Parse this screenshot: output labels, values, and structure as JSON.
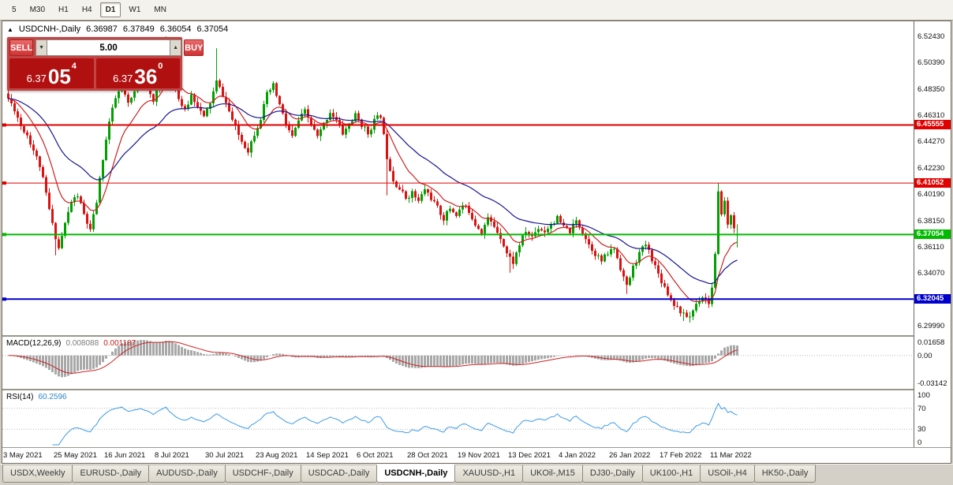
{
  "toolbar": {
    "timeframes": [
      "5",
      "M30",
      "H1",
      "H4",
      "D1",
      "W1",
      "MN"
    ],
    "active": "D1"
  },
  "header": {
    "marker": "▲",
    "symbol": "USDCNH-,Daily",
    "open": "6.36987",
    "high": "6.37849",
    "low": "6.36054",
    "close": "6.37054"
  },
  "trade_panel": {
    "sell_label": "SELL",
    "buy_label": "BUY",
    "lot_value": "5.00",
    "sell_price": {
      "main": "6.37",
      "big": "05",
      "sup": "4"
    },
    "buy_price": {
      "main": "6.37",
      "big": "36",
      "sup": "0"
    }
  },
  "macd_panel": {
    "label": "MACD(12,26,9)",
    "main_value": "0.008088",
    "signal_value": "0.001187",
    "axis": [
      "0.01658",
      "0.00",
      "-0.03142"
    ]
  },
  "rsi_panel": {
    "label": "RSI(14)",
    "value": "60.2596",
    "axis": [
      "100",
      "70",
      "30",
      "0"
    ]
  },
  "tab_bar": {
    "tabs": [
      "USDX,Weekly",
      "EURUSD-,Daily",
      "AUDUSD-,Daily",
      "USDCHF-,Daily",
      "USDCAD-,Daily",
      "USDCNH-,Daily",
      "XAUUSD-,H1",
      "UKOil-,M15",
      "DJ30-,Daily",
      "UK100-,H1",
      "USOil-,H4",
      "HK50-,Daily"
    ],
    "active": "USDCNH-,Daily"
  },
  "chart_data": {
    "type": "candlestick",
    "title": "USDCNH-,Daily",
    "bars": 232,
    "seed": 11,
    "price_min": 6.2925,
    "price_max": 6.536,
    "up_color": "#00a000",
    "down_color": "#dd1111",
    "y_axis_labels": [
      6.5243,
      6.5039,
      6.4835,
      6.4631,
      6.4427,
      6.4223,
      6.4019,
      6.3815,
      6.3611,
      6.3407,
      6.3203,
      6.2999
    ],
    "x_labels": [
      "3 May 2021",
      "25 May 2021",
      "16 Jun 2021",
      "8 Jul 2021",
      "30 Jul 2021",
      "23 Aug 2021",
      "14 Sep 2021",
      "6 Oct 2021",
      "28 Oct 2021",
      "19 Nov 2021",
      "13 Dec 2021",
      "4 Jan 2022",
      "26 Jan 2022",
      "17 Feb 2022",
      "11 Mar 2022"
    ],
    "x_label_step": 16,
    "close_waypoints": [
      [
        0,
        6.476
      ],
      [
        2,
        6.468
      ],
      [
        4,
        6.455
      ],
      [
        6,
        6.448
      ],
      [
        8,
        6.436
      ],
      [
        10,
        6.424
      ],
      [
        12,
        6.402
      ],
      [
        14,
        6.378
      ],
      [
        16,
        6.36
      ],
      [
        18,
        6.379
      ],
      [
        20,
        6.396
      ],
      [
        22,
        6.401
      ],
      [
        24,
        6.386
      ],
      [
        26,
        6.373
      ],
      [
        28,
        6.396
      ],
      [
        30,
        6.43
      ],
      [
        32,
        6.458
      ],
      [
        34,
        6.476
      ],
      [
        36,
        6.486
      ],
      [
        38,
        6.471
      ],
      [
        40,
        6.481
      ],
      [
        42,
        6.492
      ],
      [
        44,
        6.483
      ],
      [
        46,
        6.473
      ],
      [
        48,
        6.496
      ],
      [
        50,
        6.511
      ],
      [
        52,
        6.493
      ],
      [
        54,
        6.476
      ],
      [
        56,
        6.466
      ],
      [
        58,
        6.479
      ],
      [
        60,
        6.471
      ],
      [
        62,
        6.461
      ],
      [
        64,
        6.473
      ],
      [
        66,
        6.489
      ],
      [
        68,
        6.479
      ],
      [
        70,
        6.466
      ],
      [
        72,
        6.453
      ],
      [
        74,
        6.443
      ],
      [
        76,
        6.436
      ],
      [
        78,
        6.449
      ],
      [
        80,
        6.461
      ],
      [
        82,
        6.479
      ],
      [
        84,
        6.486
      ],
      [
        86,
        6.471
      ],
      [
        88,
        6.456
      ],
      [
        90,
        6.446
      ],
      [
        92,
        6.459
      ],
      [
        94,
        6.466
      ],
      [
        96,
        6.456
      ],
      [
        98,
        6.446
      ],
      [
        100,
        6.456
      ],
      [
        102,
        6.466
      ],
      [
        104,
        6.459
      ],
      [
        106,
        6.449
      ],
      [
        108,
        6.456
      ],
      [
        110,
        6.463
      ],
      [
        112,
        6.456
      ],
      [
        114,
        6.449
      ],
      [
        116,
        6.459
      ],
      [
        118,
        6.463
      ],
      [
        120,
        6.431
      ],
      [
        122,
        6.413
      ],
      [
        124,
        6.406
      ],
      [
        126,
        6.399
      ],
      [
        128,
        6.403
      ],
      [
        130,
        6.396
      ],
      [
        132,
        6.406
      ],
      [
        134,
        6.399
      ],
      [
        136,
        6.391
      ],
      [
        138,
        6.383
      ],
      [
        140,
        6.391
      ],
      [
        142,
        6.386
      ],
      [
        144,
        6.393
      ],
      [
        146,
        6.389
      ],
      [
        148,
        6.379
      ],
      [
        150,
        6.373
      ],
      [
        152,
        6.383
      ],
      [
        154,
        6.377
      ],
      [
        156,
        6.369
      ],
      [
        158,
        6.356
      ],
      [
        160,
        6.349
      ],
      [
        162,
        6.363
      ],
      [
        164,
        6.373
      ],
      [
        166,
        6.369
      ],
      [
        168,
        6.376
      ],
      [
        170,
        6.373
      ],
      [
        172,
        6.379
      ],
      [
        174,
        6.383
      ],
      [
        176,
        6.376
      ],
      [
        178,
        6.373
      ],
      [
        180,
        6.381
      ],
      [
        182,
        6.373
      ],
      [
        184,
        6.363
      ],
      [
        186,
        6.356
      ],
      [
        188,
        6.35
      ],
      [
        190,
        6.356
      ],
      [
        192,
        6.36
      ],
      [
        194,
        6.345
      ],
      [
        196,
        6.33
      ],
      [
        198,
        6.345
      ],
      [
        200,
        6.356
      ],
      [
        202,
        6.363
      ],
      [
        204,
        6.352
      ],
      [
        206,
        6.34
      ],
      [
        208,
        6.33
      ],
      [
        210,
        6.32
      ],
      [
        212,
        6.314
      ],
      [
        214,
        6.308
      ],
      [
        216,
        6.307
      ],
      [
        218,
        6.317
      ],
      [
        220,
        6.323
      ],
      [
        222,
        6.318
      ],
      [
        223,
        6.329
      ],
      [
        224,
        6.354
      ],
      [
        225,
        6.402
      ],
      [
        226,
        6.388
      ],
      [
        227,
        6.396
      ],
      [
        228,
        6.378
      ],
      [
        229,
        6.386
      ],
      [
        230,
        6.377
      ],
      [
        231,
        6.3705
      ]
    ],
    "extremes": [
      {
        "bar": 15,
        "low": 6.3545
      },
      {
        "bar": 50,
        "high": 6.5243
      },
      {
        "bar": 66,
        "high": 6.515
      },
      {
        "bar": 120,
        "low": 6.401
      },
      {
        "bar": 159,
        "low": 6.341
      },
      {
        "bar": 196,
        "low": 6.3245
      },
      {
        "bar": 214,
        "low": 6.3035
      },
      {
        "bar": 216,
        "low": 6.3022
      },
      {
        "bar": 225,
        "high": 6.4105
      }
    ],
    "last_bar": {
      "open": 6.36987,
      "high": 6.37849,
      "low": 6.36054,
      "close": 6.37054
    },
    "ma": [
      {
        "period": 12,
        "color": "#cc2222",
        "type": "ema"
      },
      {
        "period": 34,
        "color": "#161694",
        "type": "ema"
      }
    ],
    "levels": [
      {
        "value": 6.45555,
        "color": "#e00000",
        "width": 2
      },
      {
        "value": 6.41052,
        "color": "#e00000",
        "width": 1
      },
      {
        "value": 6.37054,
        "color": "#00bb00",
        "width": 2,
        "role": "bid"
      },
      {
        "value": 6.32045,
        "color": "#0000cc",
        "width": 2
      }
    ],
    "indicators": {
      "macd": {
        "fast": 12,
        "slow": 26,
        "signal": 9,
        "hist_color": "#a8a8a8",
        "signal_color": "#cc2222",
        "zero_frac": 0.36
      },
      "rsi": {
        "period": 14,
        "color": "#3d9be9",
        "levels": [
          70,
          30
        ]
      }
    }
  }
}
